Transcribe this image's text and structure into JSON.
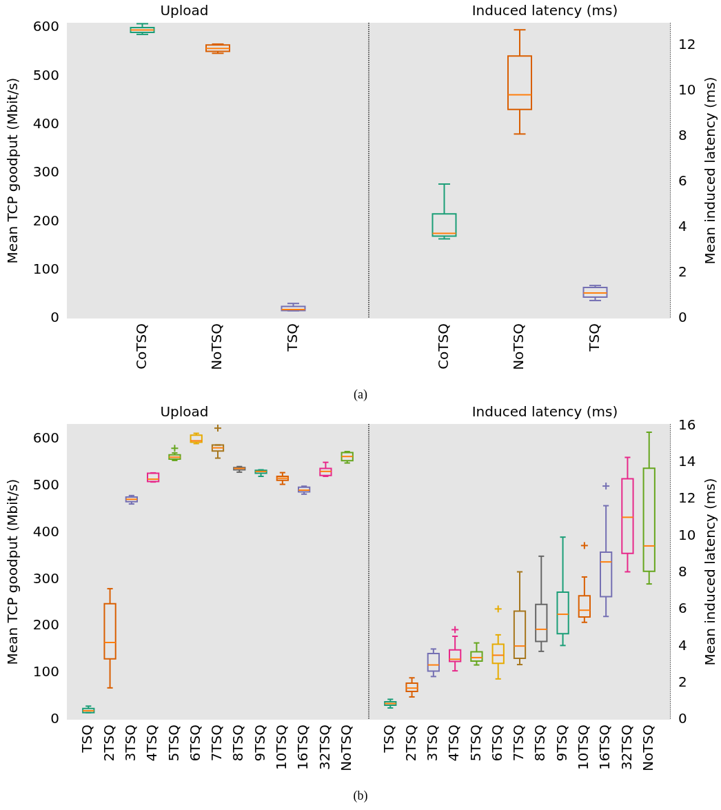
{
  "chart_data": [
    {
      "type": "box",
      "title": "Upload",
      "ylabel": "Mean TCP goodput (Mbit/s)",
      "categories": [
        "CoTSQ",
        "NoTSQ",
        "TSQ"
      ],
      "ylim": [
        0,
        610
      ],
      "yticks": [
        0,
        100,
        200,
        300,
        400,
        500,
        600
      ],
      "annotations": [
        "(a)"
      ],
      "series": [
        {
          "colors": [
            "#1b9e77",
            "#d95f02",
            "#7570b3"
          ],
          "boxes": [
            {
              "low": 586,
              "q1": 590,
              "median": 595,
              "q3": 600,
              "high": 608
            },
            {
              "low": 547,
              "q1": 551,
              "median": 557,
              "q3": 564,
              "high": 566
            },
            {
              "low": 16,
              "q1": 16.5,
              "median": 18.5,
              "q3": 25,
              "high": 31
            }
          ]
        }
      ]
    },
    {
      "type": "box",
      "title": "Induced latency (ms)",
      "y2label": "Mean induced latency (ms)",
      "categories": [
        "CoTSQ",
        "NoTSQ",
        "TSQ"
      ],
      "y2lim": [
        0,
        13
      ],
      "y2ticks": [
        0,
        2,
        4,
        6,
        8,
        10,
        12
      ],
      "series": [
        {
          "axis": "y2",
          "colors": [
            "#1b9e77",
            "#d95f02",
            "#7570b3"
          ],
          "boxes": [
            {
              "low": 3.5,
              "q1": 3.62,
              "median": 3.74,
              "q3": 4.6,
              "high": 5.91
            },
            {
              "low": 8.11,
              "q1": 9.19,
              "median": 9.83,
              "q3": 11.54,
              "high": 12.69
            },
            {
              "low": 0.79,
              "q1": 0.94,
              "median": 1.12,
              "q3": 1.36,
              "high": 1.45
            }
          ]
        }
      ]
    },
    {
      "type": "box",
      "title": "Upload",
      "ylabel": "Mean TCP goodput (Mbit/s)",
      "categories": [
        "TSQ",
        "2TSQ",
        "3TSQ",
        "4TSQ",
        "5TSQ",
        "6TSQ",
        "7TSQ",
        "8TSQ",
        "9TSQ",
        "10TSQ",
        "16TSQ",
        "32TSQ",
        "NoTSQ"
      ],
      "ylim": [
        0,
        632
      ],
      "yticks": [
        0,
        100,
        200,
        300,
        400,
        500,
        600
      ],
      "annotations": [
        "(b)"
      ],
      "series": [
        {
          "colors": [
            "#1b9e77",
            "#d95f02",
            "#7570b3",
            "#e7298a",
            "#66a61e",
            "#e6ab02",
            "#a6761d",
            "#666666",
            "#1b9e77",
            "#d95f02",
            "#7570b3",
            "#e7298a",
            "#66a61e"
          ],
          "boxes": [
            {
              "low": 15,
              "q1": 15,
              "median": 19,
              "q3": 24,
              "high": 29
            },
            {
              "low": 68,
              "q1": 130,
              "median": 165,
              "q3": 248,
              "high": 280
            },
            {
              "low": 461,
              "q1": 466,
              "median": 471,
              "q3": 476,
              "high": 479
            },
            {
              "low": 508,
              "q1": 509,
              "median": 514,
              "q3": 526.5,
              "high": 527.5
            },
            {
              "low": 554,
              "q1": 557,
              "median": 561,
              "q3": 566,
              "high": 570,
              "outliers": [
                580
              ]
            },
            {
              "low": 590,
              "q1": 593,
              "median": 596,
              "q3": 608,
              "high": 612
            },
            {
              "low": 559,
              "q1": 574,
              "median": 581,
              "q3": 587,
              "high": 587,
              "outliers": [
                623
              ]
            },
            {
              "low": 529,
              "q1": 534,
              "median": 537,
              "q3": 539,
              "high": 541
            },
            {
              "low": 520,
              "q1": 526.5,
              "median": 530.5,
              "q3": 533,
              "high": 534
            },
            {
              "low": 503,
              "q1": 511.6,
              "median": 516,
              "q3": 520,
              "high": 528
            },
            {
              "low": 482,
              "q1": 487,
              "median": 490.5,
              "q3": 497,
              "high": 499
            },
            {
              "low": 520,
              "q1": 522,
              "median": 530.6,
              "q3": 537,
              "high": 550
            },
            {
              "low": 548.6,
              "q1": 553.7,
              "median": 562.5,
              "q3": 570.7,
              "high": 573
            }
          ]
        }
      ]
    },
    {
      "type": "box",
      "title": "Induced latency (ms)",
      "y2label": "Mean induced latency (ms)",
      "categories": [
        "TSQ",
        "2TSQ",
        "3TSQ",
        "4TSQ",
        "5TSQ",
        "6TSQ",
        "7TSQ",
        "8TSQ",
        "9TSQ",
        "10TSQ",
        "16TSQ",
        "32TSQ",
        "NoTSQ"
      ],
      "y2lim": [
        0,
        16.1
      ],
      "y2ticks": [
        0,
        2,
        4,
        6,
        8,
        10,
        12,
        14,
        16
      ],
      "series": [
        {
          "axis": "y2",
          "colors": [
            "#1b9e77",
            "#d95f02",
            "#7570b3",
            "#e7298a",
            "#66a61e",
            "#e6ab02",
            "#a6761d",
            "#666666",
            "#1b9e77",
            "#d95f02",
            "#7570b3",
            "#e7298a",
            "#66a61e"
          ],
          "boxes": [
            {
              "low": 0.64,
              "q1": 0.79,
              "median": 0.88,
              "q3": 0.98,
              "high": 1.11
            },
            {
              "low": 1.24,
              "q1": 1.54,
              "median": 1.72,
              "q3": 1.99,
              "high": 2.28
            },
            {
              "low": 2.35,
              "q1": 2.65,
              "median": 2.98,
              "q3": 3.6,
              "high": 3.85
            },
            {
              "low": 2.66,
              "q1": 3.17,
              "median": 3.29,
              "q3": 3.8,
              "high": 4.54,
              "outliers": [
                4.9
              ]
            },
            {
              "low": 2.98,
              "q1": 3.19,
              "median": 3.38,
              "q3": 3.7,
              "high": 4.18
            },
            {
              "low": 2.22,
              "q1": 3.07,
              "median": 3.51,
              "q3": 4.11,
              "high": 4.62,
              "outliers": [
                6.03
              ]
            },
            {
              "low": 3.0,
              "q1": 3.34,
              "median": 4.01,
              "q3": 5.91,
              "high": 8.05
            },
            {
              "low": 3.72,
              "q1": 4.26,
              "median": 4.92,
              "q3": 6.28,
              "high": 8.9
            },
            {
              "low": 4.04,
              "q1": 4.68,
              "median": 5.74,
              "q3": 6.94,
              "high": 9.94
            },
            {
              "low": 5.3,
              "q1": 5.59,
              "median": 5.96,
              "q3": 6.75,
              "high": 7.77,
              "outliers": [
                9.48
              ]
            },
            {
              "low": 5.62,
              "q1": 6.7,
              "median": 8.59,
              "q3": 9.12,
              "high": 11.65,
              "outliers": [
                12.72
              ]
            },
            {
              "low": 8.05,
              "q1": 9.05,
              "median": 11.02,
              "q3": 13.12,
              "high": 14.28
            },
            {
              "low": 7.39,
              "q1": 8.08,
              "median": 9.46,
              "q3": 13.69,
              "high": 15.65
            }
          ]
        }
      ]
    }
  ]
}
